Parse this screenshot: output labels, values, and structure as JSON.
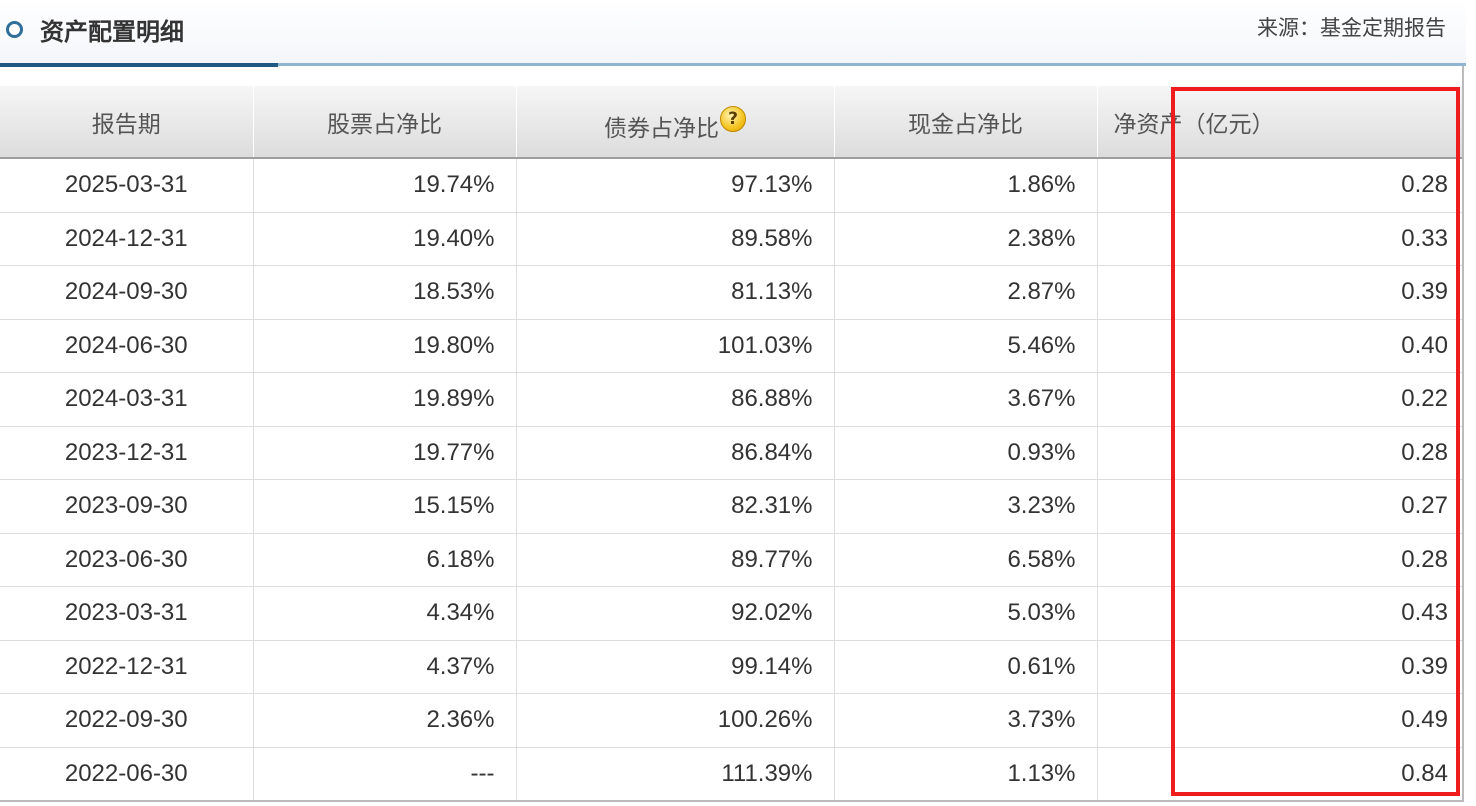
{
  "header": {
    "title": "资产配置明细",
    "source": "来源：基金定期报告"
  },
  "table": {
    "columns": {
      "date": "报告期",
      "stock": "股票占净比",
      "bond": "债券占净比",
      "cash": "现金占净比",
      "net_assets": "净资产（亿元）"
    },
    "help_icon_glyph": "?",
    "rows": [
      {
        "date": "2025-03-31",
        "stock": "19.74%",
        "bond": "97.13%",
        "cash": "1.86%",
        "net_assets": "0.28"
      },
      {
        "date": "2024-12-31",
        "stock": "19.40%",
        "bond": "89.58%",
        "cash": "2.38%",
        "net_assets": "0.33"
      },
      {
        "date": "2024-09-30",
        "stock": "18.53%",
        "bond": "81.13%",
        "cash": "2.87%",
        "net_assets": "0.39"
      },
      {
        "date": "2024-06-30",
        "stock": "19.80%",
        "bond": "101.03%",
        "cash": "5.46%",
        "net_assets": "0.40"
      },
      {
        "date": "2024-03-31",
        "stock": "19.89%",
        "bond": "86.88%",
        "cash": "3.67%",
        "net_assets": "0.22"
      },
      {
        "date": "2023-12-31",
        "stock": "19.77%",
        "bond": "86.84%",
        "cash": "0.93%",
        "net_assets": "0.28"
      },
      {
        "date": "2023-09-30",
        "stock": "15.15%",
        "bond": "82.31%",
        "cash": "3.23%",
        "net_assets": "0.27"
      },
      {
        "date": "2023-06-30",
        "stock": "6.18%",
        "bond": "89.77%",
        "cash": "6.58%",
        "net_assets": "0.28"
      },
      {
        "date": "2023-03-31",
        "stock": "4.34%",
        "bond": "92.02%",
        "cash": "5.03%",
        "net_assets": "0.43"
      },
      {
        "date": "2022-12-31",
        "stock": "4.37%",
        "bond": "99.14%",
        "cash": "0.61%",
        "net_assets": "0.39"
      },
      {
        "date": "2022-09-30",
        "stock": "2.36%",
        "bond": "100.26%",
        "cash": "3.73%",
        "net_assets": "0.49"
      },
      {
        "date": "2022-06-30",
        "stock": "---",
        "bond": "111.39%",
        "cash": "1.13%",
        "net_assets": "0.84"
      }
    ]
  },
  "colors": {
    "accent_dark": "#1e5a84",
    "accent_light": "#8fb5d3",
    "highlight_box": "#ee1c1c"
  }
}
